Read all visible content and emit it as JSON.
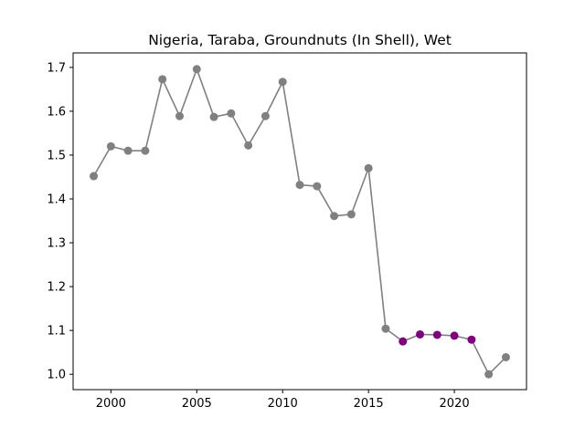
{
  "chart_data": {
    "type": "line",
    "title": "Nigeria, Taraba, Groundnuts (In Shell), Wet",
    "xlabel": "",
    "ylabel": "",
    "xlim": [
      1997.8,
      2024.2
    ],
    "ylim": [
      0.965,
      1.733
    ],
    "x_ticks": [
      2000,
      2005,
      2010,
      2015,
      2020
    ],
    "y_ticks": [
      1.0,
      1.1,
      1.2,
      1.3,
      1.4,
      1.5,
      1.6,
      1.7
    ],
    "grid": false,
    "line_color": "#808080",
    "series": [
      {
        "points": [
          {
            "x": 1999,
            "y": 1.452,
            "color": "#808080"
          },
          {
            "x": 2000,
            "y": 1.52,
            "color": "#808080"
          },
          {
            "x": 2001,
            "y": 1.51,
            "color": "#808080"
          },
          {
            "x": 2002,
            "y": 1.51,
            "color": "#808080"
          },
          {
            "x": 2003,
            "y": 1.673,
            "color": "#808080"
          },
          {
            "x": 2004,
            "y": 1.589,
            "color": "#808080"
          },
          {
            "x": 2005,
            "y": 1.696,
            "color": "#808080"
          },
          {
            "x": 2006,
            "y": 1.587,
            "color": "#808080"
          },
          {
            "x": 2007,
            "y": 1.595,
            "color": "#808080"
          },
          {
            "x": 2008,
            "y": 1.522,
            "color": "#808080"
          },
          {
            "x": 2009,
            "y": 1.589,
            "color": "#808080"
          },
          {
            "x": 2010,
            "y": 1.667,
            "color": "#808080"
          },
          {
            "x": 2011,
            "y": 1.432,
            "color": "#808080"
          },
          {
            "x": 2012,
            "y": 1.429,
            "color": "#808080"
          },
          {
            "x": 2013,
            "y": 1.361,
            "color": "#808080"
          },
          {
            "x": 2014,
            "y": 1.365,
            "color": "#808080"
          },
          {
            "x": 2015,
            "y": 1.47,
            "color": "#808080"
          },
          {
            "x": 2016,
            "y": 1.104,
            "color": "#808080"
          },
          {
            "x": 2017,
            "y": 1.075,
            "color": "#800080"
          },
          {
            "x": 2018,
            "y": 1.091,
            "color": "#800080"
          },
          {
            "x": 2019,
            "y": 1.09,
            "color": "#800080"
          },
          {
            "x": 2020,
            "y": 1.088,
            "color": "#800080"
          },
          {
            "x": 2021,
            "y": 1.079,
            "color": "#800080"
          },
          {
            "x": 2022,
            "y": 1.0,
            "color": "#808080"
          },
          {
            "x": 2023,
            "y": 1.039,
            "color": "#808080"
          }
        ]
      }
    ]
  }
}
